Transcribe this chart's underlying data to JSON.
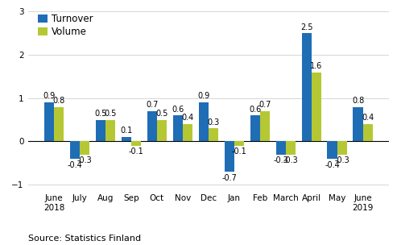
{
  "categories": [
    "June\n2018",
    "July",
    "Aug",
    "Sep",
    "Oct",
    "Nov",
    "Dec",
    "Jan",
    "Feb",
    "March",
    "April",
    "May",
    "June\n2019"
  ],
  "turnover": [
    0.9,
    -0.4,
    0.5,
    0.1,
    0.7,
    0.6,
    0.9,
    -0.7,
    0.6,
    -0.3,
    2.5,
    -0.4,
    0.8
  ],
  "volume": [
    0.8,
    -0.3,
    0.5,
    -0.1,
    0.5,
    0.4,
    0.3,
    -0.1,
    0.7,
    -0.3,
    1.6,
    -0.3,
    0.4
  ],
  "turnover_color": "#1f6db5",
  "volume_color": "#b5c833",
  "ylim": [
    -1.15,
    3.1
  ],
  "yticks": [
    -1,
    0,
    1,
    2,
    3
  ],
  "bar_width": 0.38,
  "legend_labels": [
    "Turnover",
    "Volume"
  ],
  "source_text": "Source: Statistics Finland",
  "label_fontsize": 7.0,
  "axis_fontsize": 7.5,
  "source_fontsize": 8.0,
  "legend_fontsize": 8.5
}
